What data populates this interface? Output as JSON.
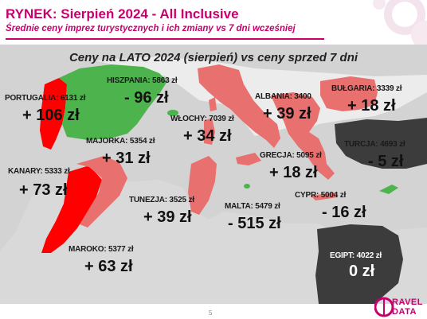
{
  "header": {
    "title": "RYNEK: Sierpień 2024 - All Inclusive",
    "subtitle": "Średnie ceny imprez turystycznych i ich zmiany vs 7 dni wcześniej"
  },
  "map": {
    "title": "Ceny na LATO 2024 (sierpień) vs ceny sprzed 7 dni",
    "colors": {
      "sea": "#cfcfcf",
      "increase": "#e8706f",
      "increase_strong": "#ff0000",
      "decrease": "#4db34d",
      "neutral": "#3c3c3c",
      "land_other": "#ffffff"
    },
    "destinations": [
      {
        "id": "portugalia",
        "label": "PORTUGALIA: 6131 zł",
        "change": "+ 106 zł"
      },
      {
        "id": "hiszpania",
        "label": "HISZPANIA: 5863 zł",
        "change": "- 96 zł"
      },
      {
        "id": "majorka",
        "label": "MAJORKA: 5354 zł",
        "change": "+ 31 zł"
      },
      {
        "id": "kanary",
        "label": "KANARY: 5333 zł",
        "change": "+ 73 zł"
      },
      {
        "id": "maroko",
        "label": "MAROKO: 5377 zł",
        "change": "+ 63 zł"
      },
      {
        "id": "tunezja",
        "label": "TUNEZJA: 3525 zł",
        "change": "+ 39 zł"
      },
      {
        "id": "wlochy",
        "label": "WŁOCHY: 7039 zł",
        "change": "+ 34 zł"
      },
      {
        "id": "malta",
        "label": "MALTA: 5479 zł",
        "change": "- 515 zł"
      },
      {
        "id": "albania",
        "label": "ALBANIA: 3400",
        "change": "+ 39 zł"
      },
      {
        "id": "grecja",
        "label": "GRECJA: 5095 zł",
        "change": "+ 18 zł"
      },
      {
        "id": "bulgaria",
        "label": "BUŁGARIA: 3339 zł",
        "change": "+ 18 zł"
      },
      {
        "id": "turcja",
        "label": "TURCJA: 4693 zł",
        "change": "- 5 zł"
      },
      {
        "id": "cypr",
        "label": "CYPR: 5004 zł",
        "change": "- 16 zł"
      },
      {
        "id": "egipt",
        "label": "EGIPT: 4022 zł",
        "change": "0 zł"
      }
    ]
  },
  "footer": {
    "page": "5",
    "logo_line1": "RAVEL",
    "logo_line2": "DATA"
  }
}
